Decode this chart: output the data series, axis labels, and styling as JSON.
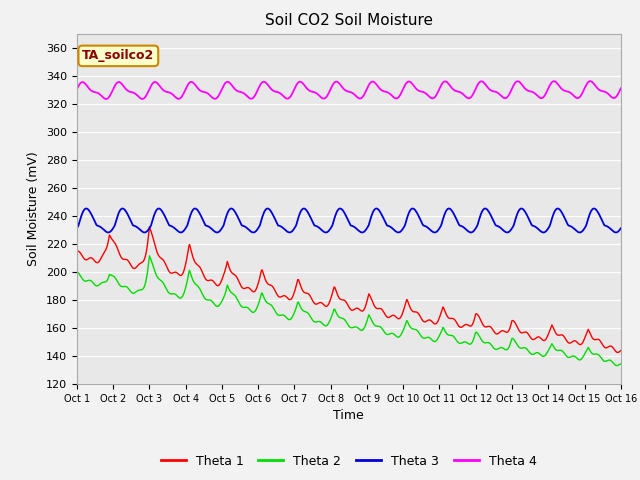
{
  "title": "Soil CO2 Soil Moisture",
  "ylabel": "Soil Moisture (mV)",
  "xlabel": "Time",
  "ylim": [
    120,
    370
  ],
  "xlim": [
    0,
    15
  ],
  "xtick_labels": [
    "Oct 1",
    "Oct 2",
    "Oct 3",
    "Oct 4",
    "Oct 5",
    "Oct 6",
    "Oct 7",
    "Oct 8",
    "Oct 9",
    "Oct 10",
    "Oct 11",
    "Oct 12",
    "Oct 13",
    "Oct 14",
    "Oct 15",
    "Oct 16"
  ],
  "annotation_text": "TA_soilco2",
  "annotation_bg": "#ffffcc",
  "annotation_border": "#cc8800",
  "bg_color": "#e8e8e8",
  "fig_bg_color": "#f2f2f2",
  "colors": {
    "theta1": "#ff0000",
    "theta2": "#00dd00",
    "theta3": "#0000dd",
    "theta4": "#ff00ff"
  },
  "legend_labels": [
    "Theta 1",
    "Theta 2",
    "Theta 3",
    "Theta 4"
  ],
  "title_fontsize": 11,
  "axis_fontsize": 9,
  "tick_fontsize": 8,
  "legend_fontsize": 9
}
